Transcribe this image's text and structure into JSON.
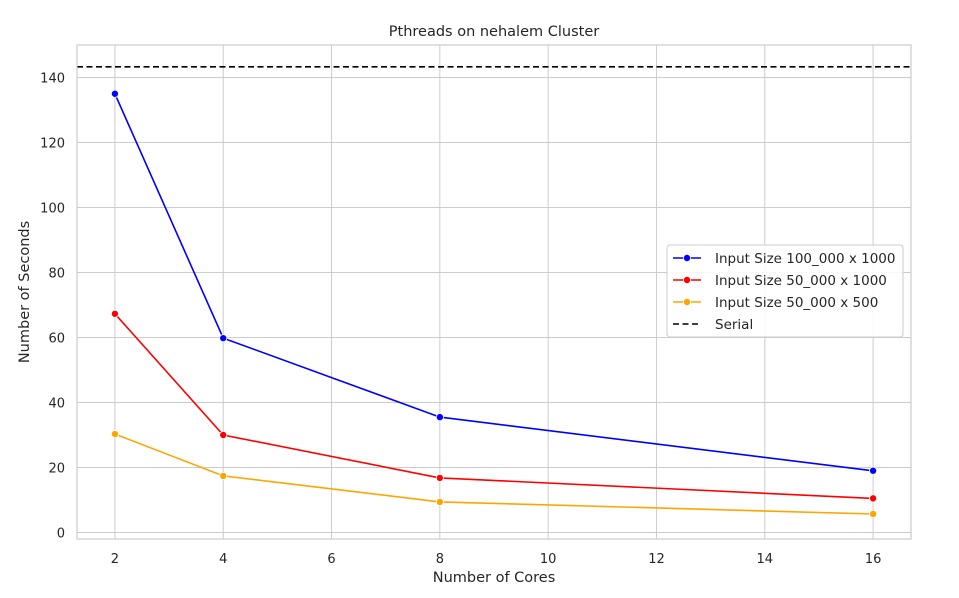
{
  "chart_data": {
    "type": "line",
    "title": "Pthreads on nehalem Cluster",
    "xlabel": "Number of Cores",
    "ylabel": "Number of Seconds",
    "x": [
      2,
      4,
      8,
      16
    ],
    "xlim": [
      1.3,
      16.7
    ],
    "ylim": [
      -2,
      150
    ],
    "xticks": [
      2,
      4,
      6,
      8,
      10,
      12,
      14,
      16
    ],
    "yticks": [
      0,
      20,
      40,
      60,
      80,
      100,
      120,
      140
    ],
    "grid": true,
    "legend_position": "center-right",
    "series": [
      {
        "name": "Input Size 100_000 x 1000",
        "color": "#0000ff",
        "marker": "circle",
        "style": "solid",
        "values": [
          135,
          59.8,
          35.5,
          19
        ]
      },
      {
        "name": "Input Size 50_000 x 1000",
        "color": "#ff0000",
        "marker": "circle",
        "style": "solid",
        "values": [
          67.3,
          30,
          16.8,
          10.5
        ]
      },
      {
        "name": "Input Size 50_000 x 500",
        "color": "#ffa500",
        "marker": "circle",
        "style": "solid",
        "values": [
          30.3,
          17.4,
          9.4,
          5.7
        ]
      }
    ],
    "reference_lines": [
      {
        "name": "Serial",
        "color": "#000000",
        "style": "dashed",
        "y": 143.3
      }
    ]
  }
}
